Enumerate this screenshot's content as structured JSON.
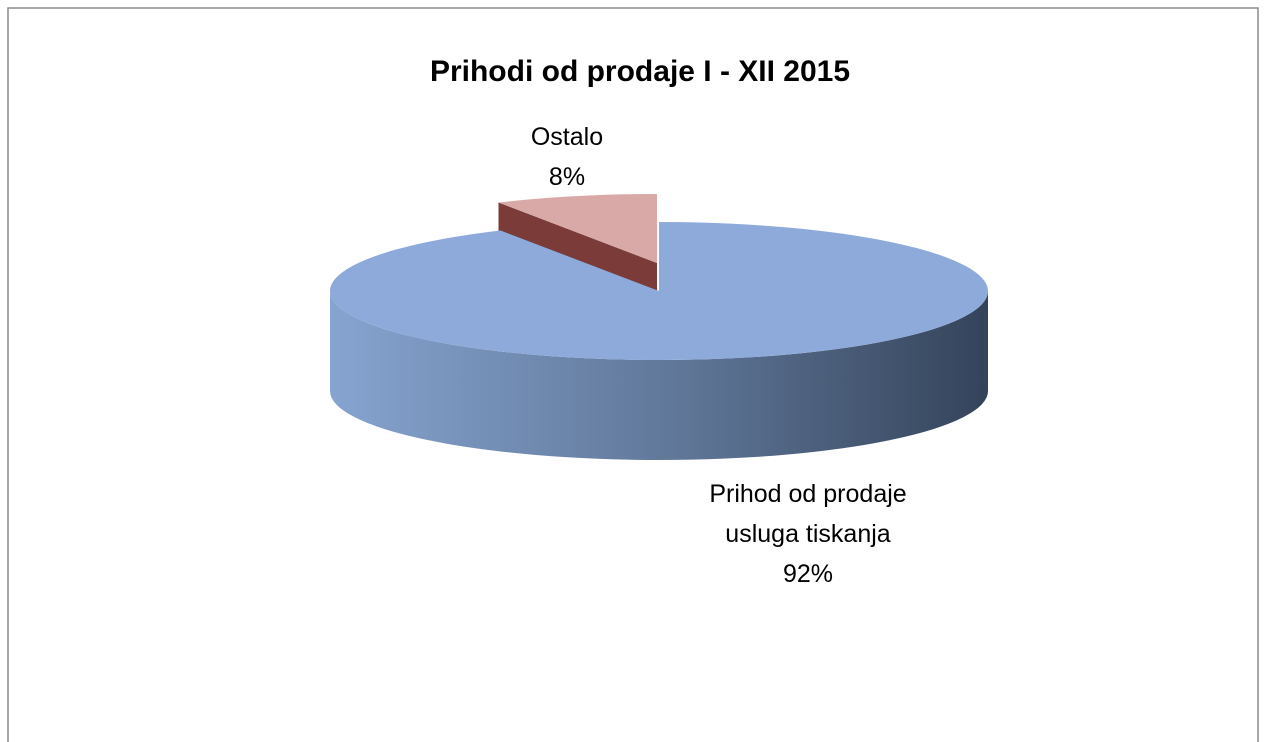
{
  "chart_data": {
    "type": "pie3d",
    "title": "Prihodi od prodaje I - XII 2015",
    "categories": [
      "Prihod od prodaje usluga tiskanja",
      "Ostalo"
    ],
    "values": [
      92,
      8
    ],
    "value_labels": [
      "92%",
      "8%"
    ],
    "colors": [
      "#8eaadb",
      "#d9a9a7"
    ]
  }
}
